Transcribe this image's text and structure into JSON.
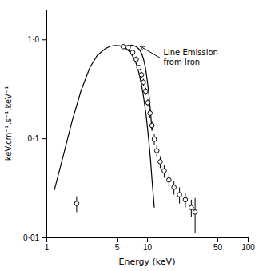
{
  "chart_data": {
    "type": "line",
    "xlabel": "Energy (keV)",
    "ylabel": "keV.cm⁻².s⁻¹.keV⁻¹",
    "log": true,
    "grid": false,
    "xlim": [
      1,
      100
    ],
    "ylim": [
      0.01,
      2.0
    ],
    "xticks": [
      1,
      5,
      10,
      50,
      100
    ],
    "yticks": [
      {
        "value": 0.01,
        "label": "0·01"
      },
      {
        "value": 0.1,
        "label": "0·1"
      },
      {
        "value": 1.0,
        "label": "1·0"
      }
    ],
    "series": [
      {
        "type": "line",
        "color": "#000000",
        "x": [
          1.2,
          1.5,
          1.8,
          2.2,
          2.7,
          3.2,
          3.8,
          4.3,
          4.8,
          5.3,
          5.8,
          6.3,
          6.8,
          7.3,
          7.8,
          8.3,
          8.8,
          9.3,
          9.8,
          10.3,
          10.8,
          11.2,
          11.8
        ],
        "values": [
          0.03,
          0.072,
          0.15,
          0.3,
          0.52,
          0.69,
          0.8,
          0.855,
          0.87,
          0.865,
          0.84,
          0.8,
          0.74,
          0.66,
          0.57,
          0.46,
          0.35,
          0.25,
          0.17,
          0.105,
          0.062,
          0.038,
          0.02
        ]
      },
      {
        "type": "line",
        "color": "#000000",
        "x": [
          6.0,
          6.3,
          6.6,
          7.0,
          7.3,
          7.6,
          8.0,
          8.4,
          8.8,
          9.2,
          9.6,
          10.0,
          10.4,
          10.8,
          11.2
        ],
        "values": [
          0.8,
          0.835,
          0.86,
          0.875,
          0.87,
          0.855,
          0.83,
          0.79,
          0.73,
          0.64,
          0.53,
          0.4,
          0.29,
          0.19,
          0.12
        ]
      },
      {
        "type": "scatter",
        "color": "#000000",
        "marker": "circle",
        "x": [
          2.0,
          5.8,
          6.5,
          7.2,
          7.8,
          8.3,
          8.8,
          9.2,
          9.7,
          10.2,
          10.7,
          11.2,
          11.8,
          12.5,
          13.5,
          14.8,
          16.5,
          18.5,
          21.0,
          24.0,
          27.5,
          30.0
        ],
        "values": [
          0.022,
          0.845,
          0.83,
          0.74,
          0.63,
          0.52,
          0.44,
          0.37,
          0.3,
          0.23,
          0.18,
          0.135,
          0.098,
          0.075,
          0.058,
          0.047,
          0.038,
          0.032,
          0.027,
          0.024,
          0.02,
          0.018
        ],
        "error_lo": [
          0.004,
          0.04,
          0.04,
          0.04,
          0.04,
          0.03,
          0.03,
          0.03,
          0.025,
          0.02,
          0.018,
          0.015,
          0.012,
          0.01,
          0.008,
          0.007,
          0.006,
          0.005,
          0.005,
          0.004,
          0.004,
          0.007
        ],
        "error_hi": [
          0.004,
          0.04,
          0.04,
          0.04,
          0.04,
          0.03,
          0.03,
          0.03,
          0.025,
          0.02,
          0.018,
          0.015,
          0.012,
          0.01,
          0.008,
          0.007,
          0.006,
          0.005,
          0.005,
          0.004,
          0.004,
          0.007
        ]
      }
    ],
    "annotations": [
      {
        "text": "Line Emission\nfrom Iron",
        "xy": [
          8.5,
          0.855
        ],
        "xytext": [
          14.0,
          0.65
        ]
      }
    ]
  }
}
